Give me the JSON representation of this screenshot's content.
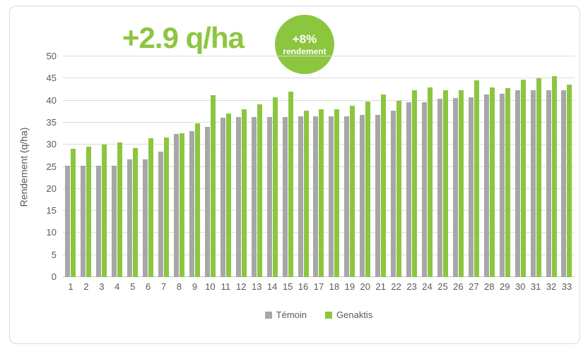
{
  "title": {
    "text": "+2.9 q/ha"
  },
  "badge": {
    "percent": "+8%",
    "label": "rendement"
  },
  "colors": {
    "green": "#8cc63f",
    "gray": "#a7a7a7",
    "axis_text": "#595959",
    "gridline": "#dcdcdc",
    "frame_border": "#d9d9d9"
  },
  "chart_data": {
    "type": "bar",
    "title": "+2.9 q/ha",
    "annotations": [
      "+2.9 q/ha",
      "+8% rendement"
    ],
    "xlabel": "",
    "ylabel": "Rendement (q/ha)",
    "ylim": [
      0,
      50
    ],
    "ytick_step": 5,
    "grid": true,
    "legend_position": "bottom",
    "categories": [
      1,
      2,
      3,
      4,
      5,
      6,
      7,
      8,
      9,
      10,
      11,
      12,
      13,
      14,
      15,
      16,
      17,
      18,
      19,
      20,
      21,
      22,
      23,
      24,
      25,
      26,
      27,
      28,
      29,
      30,
      31,
      32,
      33
    ],
    "series": [
      {
        "name": "Témoin",
        "color": "#a7a7a7",
        "values": [
          25.3,
          25.3,
          25.3,
          25.3,
          26.6,
          26.6,
          28.5,
          32.4,
          33.0,
          34.0,
          36.1,
          36.2,
          36.2,
          36.2,
          36.2,
          36.4,
          36.4,
          36.4,
          36.5,
          36.7,
          36.8,
          37.7,
          39.6,
          39.6,
          40.4,
          40.5,
          40.8,
          41.3,
          41.6,
          42.3,
          42.4,
          42.4,
          42.4
        ]
      },
      {
        "name": "Genaktis",
        "color": "#8cc63f",
        "values": [
          29.0,
          29.5,
          30.0,
          30.5,
          29.3,
          31.5,
          31.7,
          32.6,
          34.8,
          41.2,
          37.1,
          38.0,
          39.2,
          40.7,
          42.0,
          37.7,
          38.1,
          38.1,
          38.8,
          39.8,
          41.4,
          40.0,
          42.3,
          43.0,
          42.3,
          42.4,
          44.6,
          43.0,
          42.8,
          44.8,
          45.1,
          45.6,
          43.6
        ]
      }
    ]
  }
}
